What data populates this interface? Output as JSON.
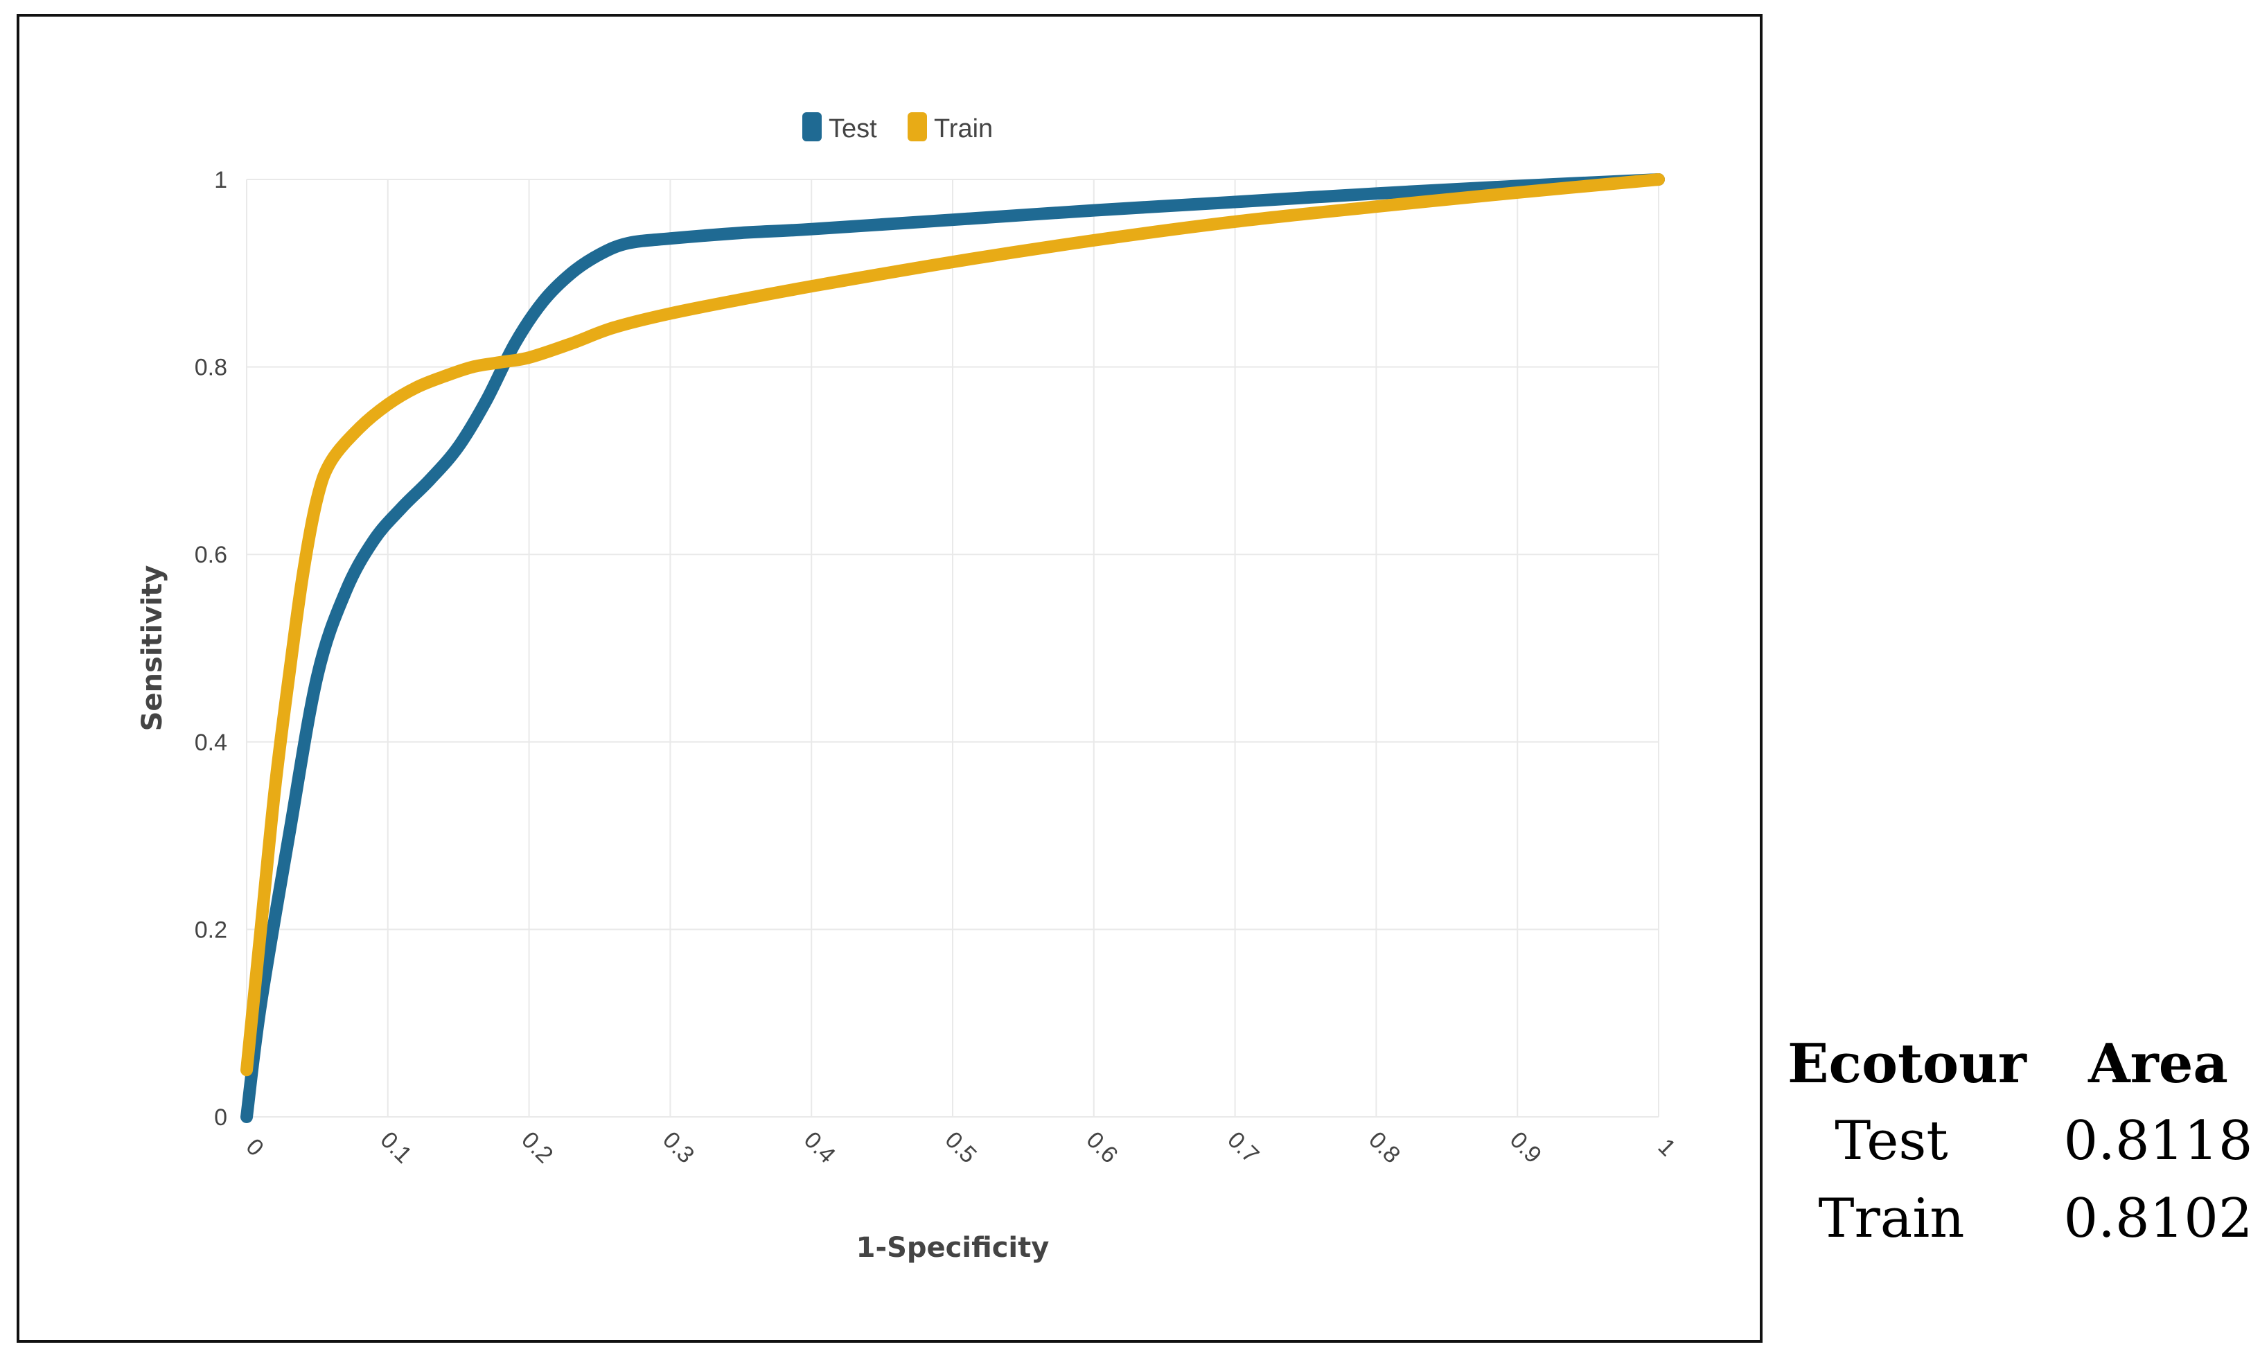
{
  "chart_data": {
    "type": "line",
    "xlabel": "1-Specificity",
    "ylabel": "Sensitivity",
    "xlim": [
      0,
      1
    ],
    "ylim": [
      0,
      1
    ],
    "x_ticks": [
      "0",
      "0.1",
      "0.2",
      "0.3",
      "0.4",
      "0.5",
      "0.6",
      "0.7",
      "0.8",
      "0.9",
      "1"
    ],
    "y_ticks": [
      "0",
      "0.2",
      "0.4",
      "0.6",
      "0.8",
      "1"
    ],
    "grid": true,
    "legend_position": "top-center",
    "series": [
      {
        "name": "Test",
        "color": "#1f6a93",
        "points": [
          [
            0,
            0
          ],
          [
            0.01,
            0.12
          ],
          [
            0.03,
            0.3
          ],
          [
            0.05,
            0.47
          ],
          [
            0.07,
            0.56
          ],
          [
            0.09,
            0.615
          ],
          [
            0.11,
            0.65
          ],
          [
            0.13,
            0.68
          ],
          [
            0.15,
            0.715
          ],
          [
            0.17,
            0.765
          ],
          [
            0.19,
            0.825
          ],
          [
            0.21,
            0.87
          ],
          [
            0.23,
            0.9
          ],
          [
            0.25,
            0.92
          ],
          [
            0.27,
            0.932
          ],
          [
            0.3,
            0.937
          ],
          [
            0.35,
            0.943
          ],
          [
            0.4,
            0.947
          ],
          [
            0.5,
            0.957
          ],
          [
            0.6,
            0.967
          ],
          [
            0.7,
            0.976
          ],
          [
            0.8,
            0.985
          ],
          [
            0.9,
            0.993
          ],
          [
            1,
            1
          ]
        ]
      },
      {
        "name": "Train",
        "color": "#e8ab16",
        "points": [
          [
            0,
            0.05
          ],
          [
            0.01,
            0.2
          ],
          [
            0.02,
            0.35
          ],
          [
            0.03,
            0.47
          ],
          [
            0.04,
            0.58
          ],
          [
            0.05,
            0.66
          ],
          [
            0.06,
            0.7
          ],
          [
            0.08,
            0.735
          ],
          [
            0.1,
            0.76
          ],
          [
            0.12,
            0.778
          ],
          [
            0.14,
            0.79
          ],
          [
            0.16,
            0.8
          ],
          [
            0.18,
            0.805
          ],
          [
            0.2,
            0.81
          ],
          [
            0.23,
            0.825
          ],
          [
            0.26,
            0.842
          ],
          [
            0.3,
            0.857
          ],
          [
            0.35,
            0.872
          ],
          [
            0.4,
            0.886
          ],
          [
            0.5,
            0.912
          ],
          [
            0.6,
            0.935
          ],
          [
            0.7,
            0.955
          ],
          [
            0.8,
            0.971
          ],
          [
            0.9,
            0.986
          ],
          [
            1,
            1
          ]
        ]
      }
    ]
  },
  "auc_table": {
    "headers": [
      "Ecotour",
      "Area"
    ],
    "rows": [
      {
        "label": "Test",
        "value": "0.8118"
      },
      {
        "label": "Train",
        "value": "0.8102"
      }
    ]
  }
}
